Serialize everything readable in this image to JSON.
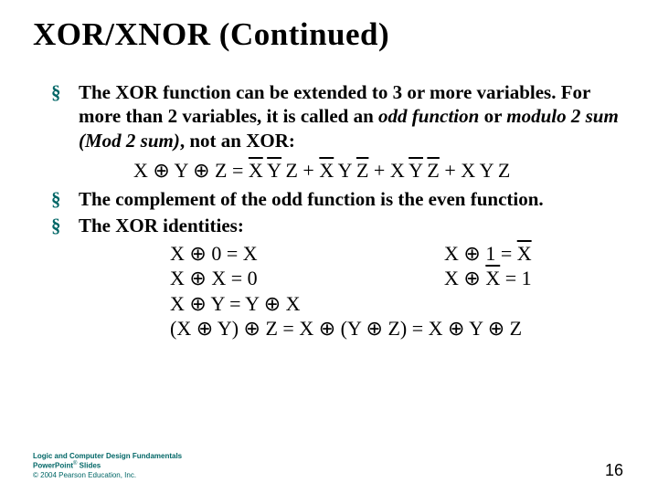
{
  "background_color": "#ffffff",
  "accent_color": "#006666",
  "text_color": "#000000",
  "title": "XOR/XNOR (Continued)",
  "bullets": {
    "b1_a": "The XOR function can be extended to 3 or more variables. For more than 2 variables, it is called an ",
    "b1_odd": "odd function",
    "b1_b": " or ",
    "b1_mod": "modulo 2 sum (Mod 2 sum)",
    "b1_c": ", not an XOR:",
    "b2": "The complement of the odd function is the even function.",
    "b3": "The XOR identities:"
  },
  "equation": {
    "lhs": "X ⊕ Y ⊕ Z",
    "eq": "=",
    "t1a": "X",
    "t1b": "Y",
    "t1c": "Z",
    "t2a": "X",
    "t2b": "Y",
    "t2c": "Z",
    "t3a": "X",
    "t3b": "Y",
    "t3c": "Z",
    "t4a": "X",
    "t4b": "Y",
    "t4c": "Z",
    "plus": " + "
  },
  "identities": {
    "r1l": "X ⊕ 0 = X",
    "r1r_a": "X ⊕ 1 = ",
    "r1r_b": "X",
    "r2l": "X ⊕ X = 0",
    "r2r_a": "X ⊕ ",
    "r2r_b": "X",
    "r2r_c": " = 1",
    "r3": "X ⊕ Y = Y ⊕ X",
    "r4": "(X ⊕ Y) ⊕ Z = X ⊕ (Y ⊕ Z) = X ⊕ Y ⊕ Z"
  },
  "footer": {
    "l1a": "Logic and Computer Design Fundamentals",
    "l2a": "PowerPoint",
    "l2sup": "®",
    "l2b": " Slides",
    "l3": "© 2004 Pearson Education, Inc."
  },
  "page_number": "16"
}
